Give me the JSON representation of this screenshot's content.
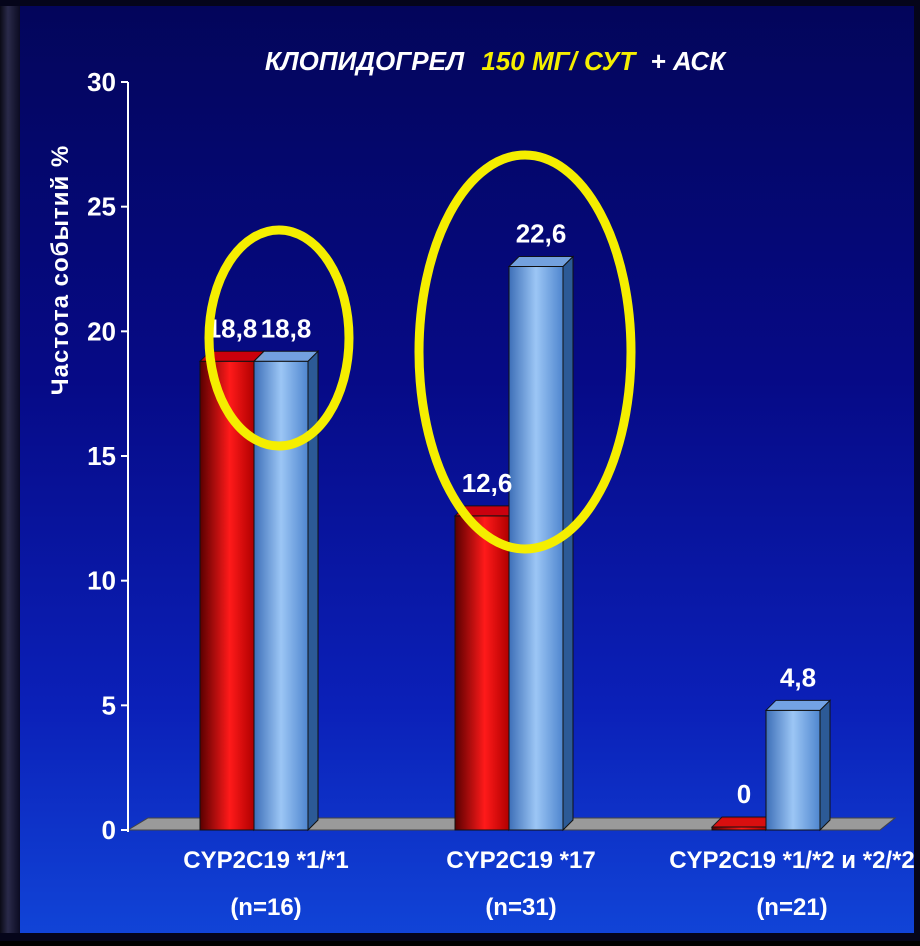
{
  "chart_data": {
    "type": "bar",
    "title": "КЛОПИДОГРЕЛ",
    "title_dose": "150 МГ/ СУТ",
    "title_suffix": "+ АСК",
    "ylabel": "Частота событий %",
    "ylim": [
      0,
      30
    ],
    "yticks": [
      "0",
      "5",
      "10",
      "15",
      "20",
      "25",
      "30"
    ],
    "categories": [
      "CYP2C19 *1/*1",
      "CYP2C19 *17",
      "CYP2C19 *1/*2 и *2/*2"
    ],
    "category_sublabels": [
      "(n=16)",
      "(n=31)",
      "(n=21)"
    ],
    "series": [
      {
        "values": [
          18.8,
          12.6,
          0
        ],
        "labels": [
          "18,8",
          "12,6",
          "0"
        ]
      },
      {
        "values": [
          18.8,
          22.6,
          4.8
        ],
        "labels": [
          "18,8",
          "22,6",
          "4,8"
        ]
      }
    ],
    "highlight_categories": [
      0,
      1
    ],
    "colors": {
      "series0": "#e00000",
      "series1": "#7fb2ea",
      "highlight": "#f5ee00",
      "title_dose": "#f5ee00",
      "text": "#ffffff"
    }
  }
}
